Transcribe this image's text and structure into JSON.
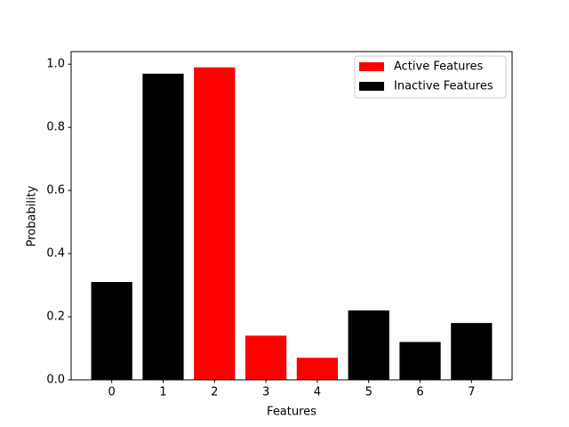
{
  "chart_data": {
    "type": "bar",
    "x_label": "Features",
    "y_label": "Probability",
    "x": [
      0,
      1,
      2,
      3,
      4,
      5,
      6,
      7
    ],
    "series": [
      {
        "name": "Active Features",
        "color": "#ff0000",
        "values": [
          null,
          null,
          0.99,
          0.14,
          0.07,
          null,
          null,
          null
        ]
      },
      {
        "name": "Inactive Features",
        "color": "#000000",
        "values": [
          0.31,
          0.97,
          null,
          null,
          null,
          0.22,
          0.12,
          0.18
        ]
      }
    ],
    "bar_width": 0.8,
    "xlim": [
      -0.79,
      7.79
    ],
    "xticks": [
      0,
      1,
      2,
      3,
      4,
      5,
      6,
      7
    ],
    "ylim": [
      0,
      1.04
    ],
    "yticks": [
      {
        "value": 0,
        "label": "0.0"
      },
      0.2,
      0.4,
      0.6,
      0.8,
      {
        "value": 1,
        "label": "1.0"
      }
    ],
    "legend": "upper right"
  }
}
